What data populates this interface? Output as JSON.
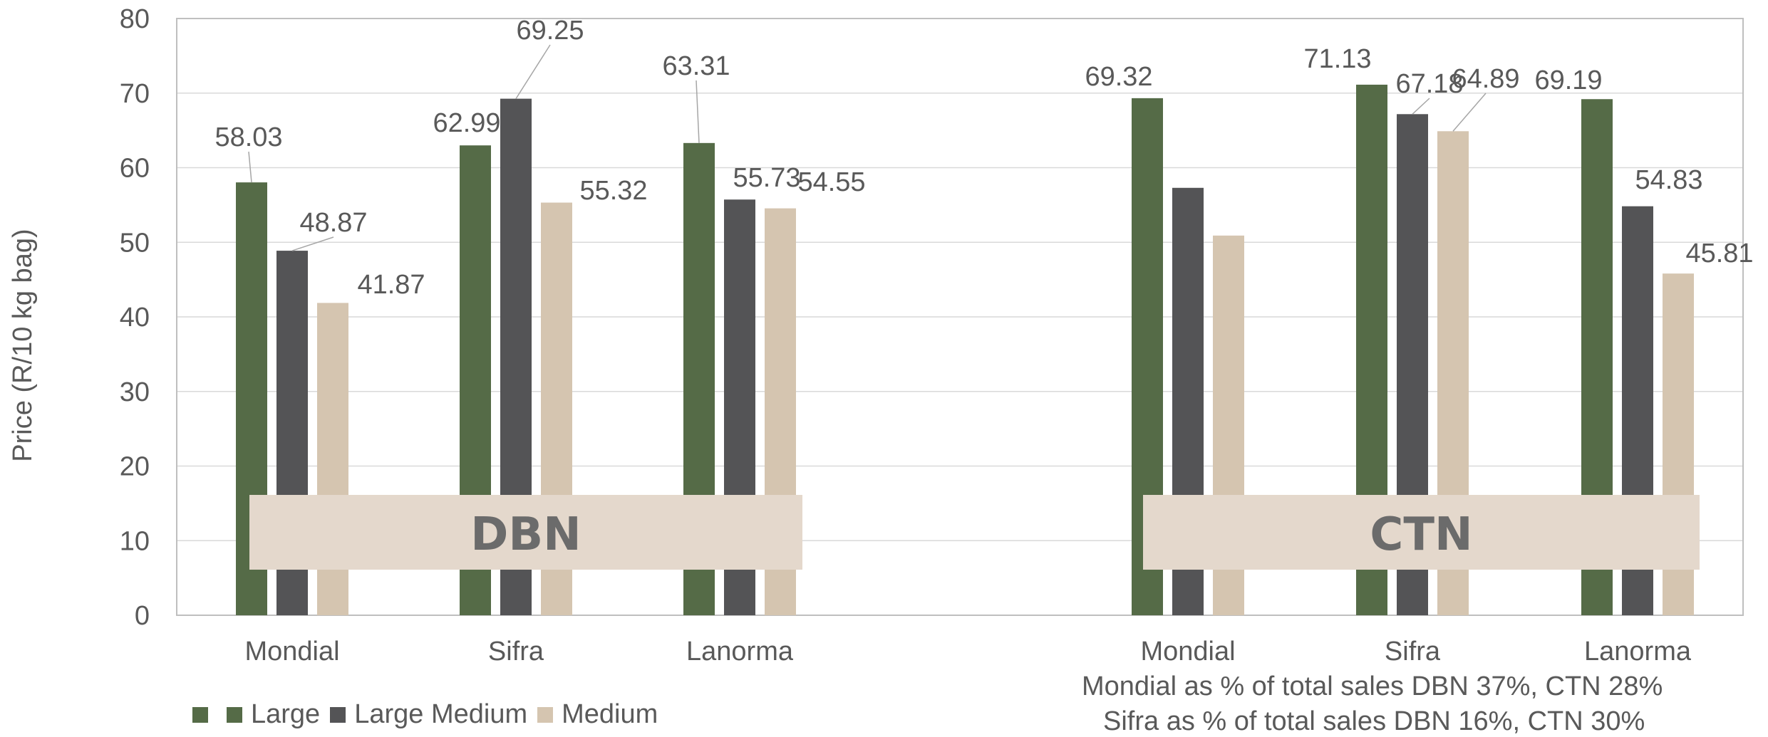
{
  "chart_data": {
    "type": "bar",
    "ylabel": "Price (R/10 kg bag)",
    "ylim": [
      0,
      80
    ],
    "yticks": [
      0,
      10,
      20,
      30,
      40,
      50,
      60,
      70,
      80
    ],
    "grid": true,
    "legend_position": "bottom-left",
    "groups": [
      {
        "name": "DBN",
        "categories": [
          "Mondial",
          "Sifra",
          "Lanorma"
        ],
        "series": [
          {
            "name": "Large",
            "values": [
              58.03,
              62.99,
              63.31
            ],
            "labels": [
              "58.03",
              "62.99",
              "63.31"
            ]
          },
          {
            "name": "Large Medium",
            "values": [
              48.87,
              69.25,
              55.73
            ],
            "labels": [
              "48.87",
              "69.25",
              "55.73"
            ]
          },
          {
            "name": "Medium",
            "values": [
              41.87,
              55.32,
              54.55
            ],
            "labels": [
              "41.87",
              "55.32",
              "54.55"
            ]
          }
        ]
      },
      {
        "name": "CTN",
        "categories": [
          "Mondial",
          "Sifra",
          "Lanorma"
        ],
        "series": [
          {
            "name": "Large",
            "values": [
              69.32,
              71.13,
              69.19
            ],
            "labels": [
              "69.32",
              "71.13",
              "69.19"
            ]
          },
          {
            "name": "Large Medium",
            "values": [
              57.3,
              67.18,
              54.83
            ],
            "labels": [
              "",
              "67.18",
              "54.83"
            ]
          },
          {
            "name": "Medium",
            "values": [
              50.9,
              64.89,
              45.81
            ],
            "labels": [
              "",
              "64.89",
              "45.81"
            ]
          }
        ]
      }
    ],
    "legend": [
      "",
      "Large",
      "Large Medium",
      "Medium"
    ],
    "footnotes": [
      "Mondial as % of total sales DBN 37%, CTN 28%",
      "Sifra as % of total sales DBN 16%, CTN 30%"
    ]
  },
  "colors": {
    "large": "#556b47",
    "large_medium": "#545456",
    "medium": "#d5c5b0",
    "group_band": "#e4d8cc",
    "grid": "#d9d9d9",
    "axis": "#bfbfbf"
  }
}
